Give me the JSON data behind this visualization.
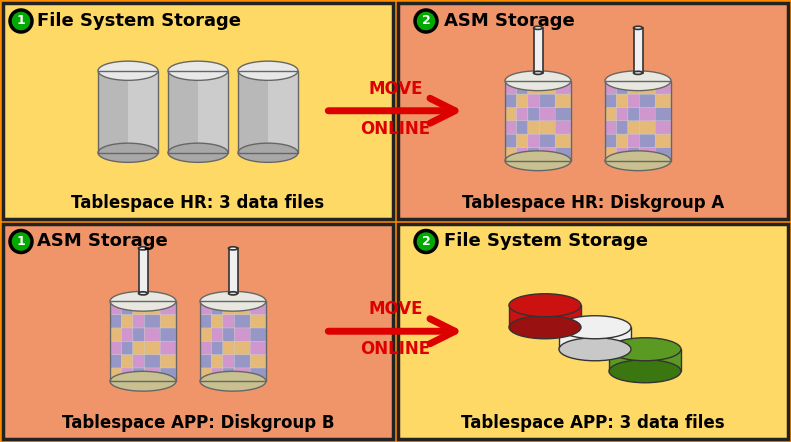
{
  "bg_color": "#FF8C00",
  "panel_tl_bg": "#FFD966",
  "panel_tr_bg": "#F0956A",
  "panel_bl_bg": "#F0956A",
  "panel_br_bg": "#FFD966",
  "panel_border": "#222222",
  "arrow_color": "#DD0000",
  "move_online_color": "#DD0000",
  "circle1_fill": "#00AA00",
  "circle2_fill": "#00AA00",
  "top_left_title": "File System Storage",
  "top_right_title": "ASM Storage",
  "bottom_left_title": "ASM Storage",
  "bottom_right_title": "File System Storage",
  "top_left_label": "Tablespace HR: 3 data files",
  "top_right_label": "Tablespace HR: Diskgroup A",
  "bottom_left_label": "Tablespace APP: Diskgroup B",
  "bottom_right_label": "Tablespace APP: 3 data files",
  "fig_width": 7.91,
  "fig_height": 4.42,
  "fs_cyl_color": "#D0D0D0",
  "fs_cyl_shade": "#A8A8A8",
  "fs_cyl_top": "#E8E8E8",
  "asm_block_colors": [
    "#E8B870",
    "#D090D0",
    "#9090C8"
  ],
  "asm_body_color": "#D0CCC0",
  "asm_bottom_color": "#C8C090",
  "disk_red": "#CC1111",
  "disk_red_shade": "#991111",
  "disk_white": "#F0F0F0",
  "disk_white_shade": "#C8C8C8",
  "disk_green": "#5A9922",
  "disk_green_shade": "#3A7711"
}
